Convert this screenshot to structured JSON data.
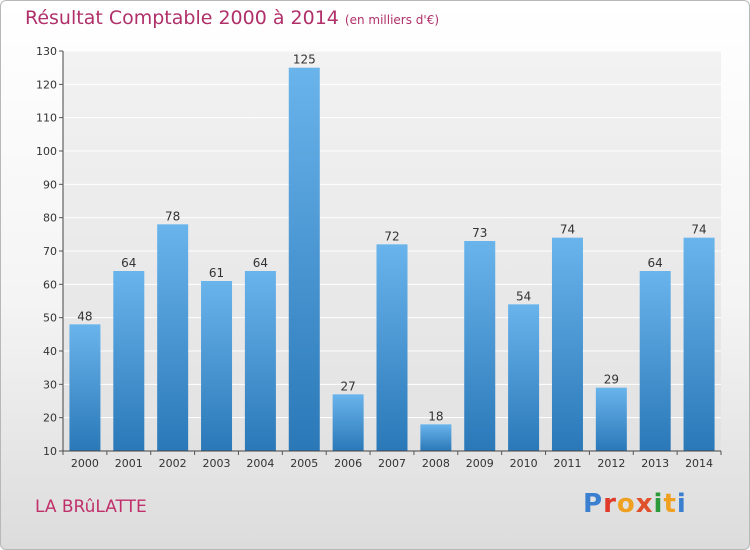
{
  "header": {
    "title": "Résultat Comptable 2000 à 2014",
    "subtitle": "(en milliers d'€)"
  },
  "footer": {
    "place": "LA BRûLATTE",
    "logo": "Proxiti"
  },
  "colors": {
    "title": "#b0306a",
    "bar_top": "#6ab4ec",
    "bar_bottom": "#2a78b8"
  },
  "chart_data": {
    "type": "bar",
    "title": "Résultat Comptable 2000 à 2014",
    "subtitle": "(en milliers d'€)",
    "xlabel": "",
    "ylabel": "",
    "ylim": [
      10,
      130
    ],
    "yticks": [
      10,
      20,
      30,
      40,
      50,
      60,
      70,
      80,
      90,
      100,
      110,
      120,
      130
    ],
    "grid": true,
    "categories": [
      "2000",
      "2001",
      "2002",
      "2003",
      "2004",
      "2005",
      "2006",
      "2007",
      "2008",
      "2009",
      "2010",
      "2011",
      "2012",
      "2013",
      "2014"
    ],
    "values": [
      48,
      64,
      78,
      61,
      64,
      125,
      27,
      72,
      18,
      73,
      54,
      74,
      29,
      64,
      74
    ]
  }
}
